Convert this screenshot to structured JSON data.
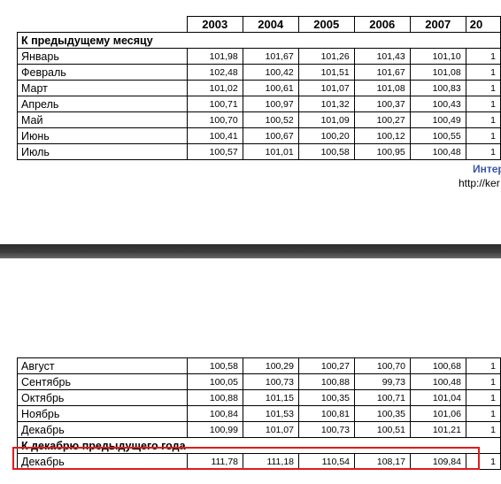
{
  "top": {
    "years": [
      "2003",
      "2004",
      "2005",
      "2006",
      "2007",
      "20"
    ],
    "section_title": "К предыдущему месяцу",
    "rows": [
      {
        "month": "Январь",
        "values": [
          "101,98",
          "101,67",
          "101,26",
          "101,43",
          "101,10",
          "1"
        ]
      },
      {
        "month": "Февраль",
        "values": [
          "102,48",
          "100,42",
          "101,51",
          "101,67",
          "101,08",
          "1"
        ]
      },
      {
        "month": "Март",
        "values": [
          "101,02",
          "100,61",
          "101,07",
          "101,08",
          "100,83",
          "1"
        ]
      },
      {
        "month": "Апрель",
        "values": [
          "100,71",
          "100,97",
          "101,32",
          "100,37",
          "100,43",
          "1"
        ]
      },
      {
        "month": "Май",
        "values": [
          "100,70",
          "100,52",
          "101,09",
          "100,27",
          "100,49",
          "1"
        ]
      },
      {
        "month": "Июнь",
        "values": [
          "100,41",
          "100,67",
          "100,20",
          "100,12",
          "100,55",
          "1"
        ]
      },
      {
        "month": "Июль",
        "values": [
          "100,57",
          "101,01",
          "100,58",
          "100,95",
          "100,48",
          "1"
        ]
      }
    ],
    "link_title": "Интер",
    "link_url": "http://ker"
  },
  "bottom": {
    "rows": [
      {
        "month": "Август",
        "values": [
          "100,58",
          "100,29",
          "100,27",
          "100,70",
          "100,68",
          "1"
        ]
      },
      {
        "month": "Сентябрь",
        "values": [
          "100,05",
          "100,73",
          "100,88",
          "99,73",
          "100,48",
          "1"
        ]
      },
      {
        "month": "Октябрь",
        "values": [
          "100,88",
          "101,15",
          "100,35",
          "100,71",
          "101,04",
          "1"
        ]
      },
      {
        "month": "Ноябрь",
        "values": [
          "100,84",
          "101,53",
          "100,81",
          "100,35",
          "101,06",
          "1"
        ]
      },
      {
        "month": "Декабрь",
        "values": [
          "100,99",
          "101,07",
          "100,73",
          "100,51",
          "101,21",
          "1"
        ]
      }
    ],
    "section_title": "К декабрю предыдущего года",
    "december_row": {
      "month": "Декабрь",
      "values": [
        "111,78",
        "111,18",
        "110,54",
        "108,17",
        "109,84",
        "1"
      ]
    }
  },
  "highlight_color": "#e01b1b"
}
